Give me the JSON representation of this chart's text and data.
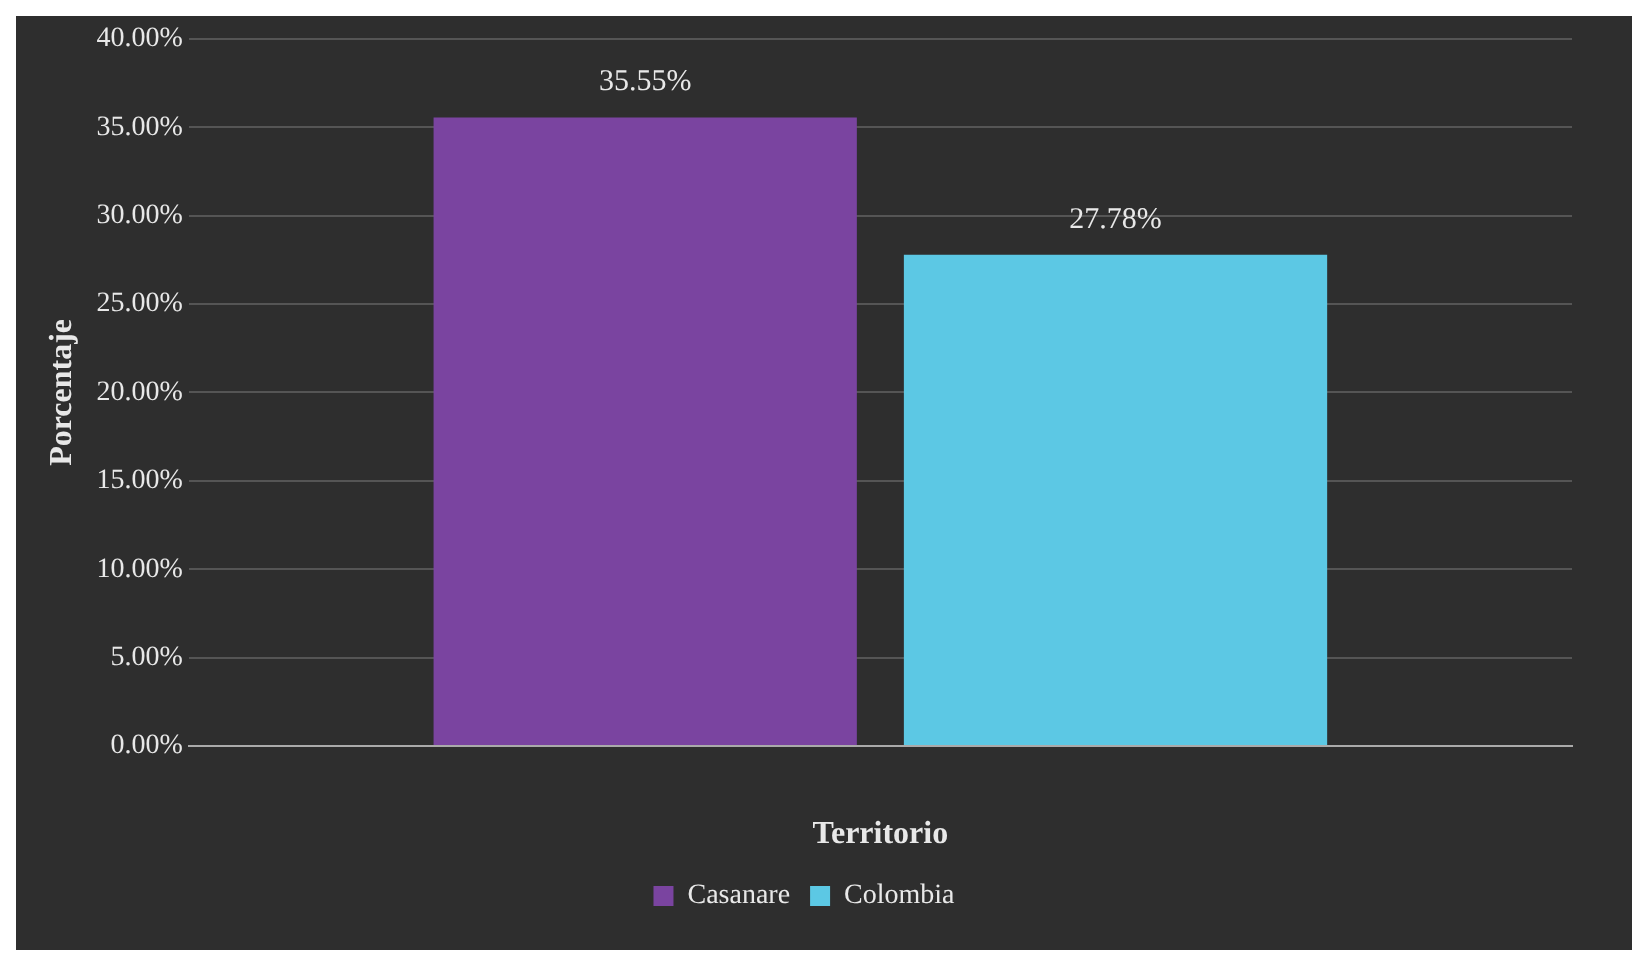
{
  "chart_data": {
    "type": "bar",
    "xlabel": "Territorio",
    "ylabel": "Porcentaje",
    "categories": [
      null
    ],
    "series": [
      {
        "name": "Casanare",
        "color": "#7a44a0",
        "values": [
          35.55
        ],
        "value_labels": [
          "35.55%"
        ]
      },
      {
        "name": "Colombia",
        "color": "#5cc8e4",
        "values": [
          27.78
        ],
        "value_labels": [
          "27.78%"
        ]
      }
    ],
    "ylim": [
      0,
      40
    ],
    "yticks": [
      {
        "value": 0,
        "label": "0.00%"
      },
      {
        "value": 5,
        "label": "5.00%"
      },
      {
        "value": 10,
        "label": "10.00%"
      },
      {
        "value": 15,
        "label": "15.00%"
      },
      {
        "value": 20,
        "label": "20.00%"
      },
      {
        "value": 25,
        "label": "25.00%"
      },
      {
        "value": 30,
        "label": "30.00%"
      },
      {
        "value": 35,
        "label": "35.00%"
      },
      {
        "value": 40,
        "label": "40.00%"
      }
    ],
    "grid": "y",
    "legend": "bottom"
  }
}
